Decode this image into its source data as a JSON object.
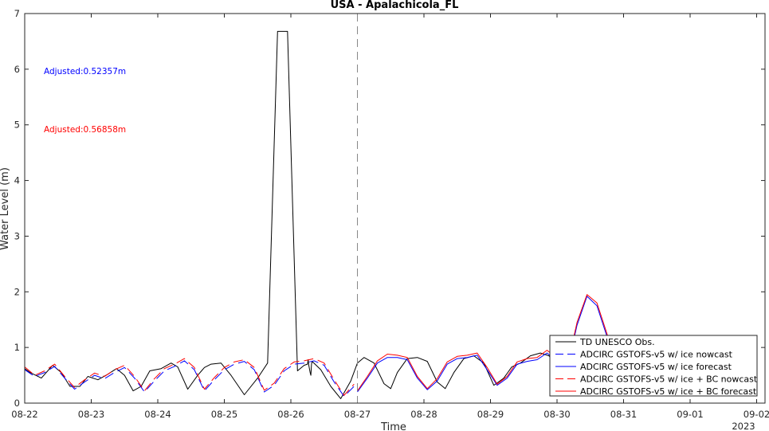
{
  "chart_data": {
    "type": "line",
    "title": "USA - Apalachicola_FL",
    "xlabel": "Time",
    "ylabel": "Water Level (m)",
    "year_label": "2023",
    "xlim": [
      "08-22",
      "09-02"
    ],
    "ylim": [
      0,
      7
    ],
    "grid": false,
    "legend_placement": "bottom-right",
    "x_tick_labels": [
      "08-22",
      "08-23",
      "08-24",
      "08-25",
      "08-26",
      "08-27",
      "08-28",
      "08-29",
      "08-30",
      "08-31",
      "09-01",
      "09-02"
    ],
    "y_tick_labels": [
      "0",
      "1",
      "2",
      "3",
      "4",
      "5",
      "6",
      "7"
    ],
    "annotations": [
      {
        "text": "Adjusted:0.52357m",
        "color": "#0000ff"
      },
      {
        "text": "Adjusted:0.56858m",
        "color": "#ff0000"
      }
    ],
    "nowcast_forecast_divider": "08-27",
    "series": [
      {
        "name": "TD UNESCO Obs.",
        "color": "#000000",
        "dash": "solid",
        "x": [
          0,
          0.08,
          0.25,
          0.42,
          0.55,
          0.68,
          0.83,
          0.95,
          1.1,
          1.25,
          1.38,
          1.5,
          1.63,
          1.75,
          1.88,
          2.05,
          2.2,
          2.3,
          2.45,
          2.6,
          2.7,
          2.8,
          2.95,
          3.1,
          3.3,
          3.5,
          3.65,
          3.8,
          3.95,
          4.1,
          4.2,
          4.25,
          4.26,
          4.27,
          4.29,
          4.3,
          4.31,
          4.32,
          4.45,
          4.6,
          4.75,
          4.9,
          5.0,
          5.1,
          5.25,
          5.4,
          5.5,
          5.6,
          5.75,
          5.9,
          6.05,
          6.2,
          6.32,
          6.45,
          6.6,
          6.75,
          6.9,
          7.05,
          7.2,
          7.32,
          7.45,
          7.6,
          7.75,
          7.88,
          8.0
        ],
        "y": [
          0.62,
          0.55,
          0.45,
          0.68,
          0.55,
          0.3,
          0.3,
          0.48,
          0.42,
          0.52,
          0.62,
          0.5,
          0.22,
          0.3,
          0.58,
          0.62,
          0.72,
          0.65,
          0.25,
          0.5,
          0.64,
          0.7,
          0.72,
          0.5,
          0.15,
          0.45,
          0.72,
          6.68,
          6.68,
          0.58,
          0.68,
          0.7,
          0.78,
          0.68,
          0.55,
          0.5,
          0.7,
          0.75,
          0.6,
          0.3,
          0.08,
          0.4,
          0.72,
          0.82,
          0.72,
          0.35,
          0.26,
          0.55,
          0.8,
          0.82,
          0.75,
          0.38,
          0.26,
          0.55,
          0.8,
          0.85,
          0.72,
          0.32,
          0.45,
          0.65,
          0.72,
          0.85,
          0.9,
          0.85,
          0.62
        ]
      },
      {
        "name": "ADCIRC GSTOFS-v5 w/ ice nowcast",
        "color": "#0000ff",
        "dash": "dashed",
        "x": [
          0,
          0.15,
          0.3,
          0.45,
          0.6,
          0.75,
          0.9,
          1.05,
          1.2,
          1.35,
          1.5,
          1.65,
          1.8,
          1.95,
          2.1,
          2.25,
          2.4,
          2.55,
          2.7,
          2.85,
          3.0,
          3.15,
          3.3,
          3.45,
          3.6,
          3.75,
          3.9,
          4.05,
          4.2,
          4.35,
          4.5,
          4.65,
          4.8,
          4.95
        ],
        "y": [
          0.6,
          0.48,
          0.55,
          0.66,
          0.45,
          0.25,
          0.38,
          0.5,
          0.44,
          0.55,
          0.64,
          0.45,
          0.2,
          0.4,
          0.58,
          0.66,
          0.76,
          0.6,
          0.22,
          0.42,
          0.6,
          0.7,
          0.75,
          0.6,
          0.2,
          0.32,
          0.58,
          0.7,
          0.72,
          0.76,
          0.68,
          0.38,
          0.12,
          0.3
        ]
      },
      {
        "name": "ADCIRC GSTOFS-v5 w/ ice forecast",
        "color": "#0000ff",
        "dash": "solid",
        "x": [
          5.0,
          5.15,
          5.3,
          5.45,
          5.6,
          5.75,
          5.9,
          6.05,
          6.2,
          6.35,
          6.5,
          6.65,
          6.8,
          6.95,
          7.1,
          7.25,
          7.4,
          7.55,
          7.7,
          7.85,
          8.0,
          8.15,
          8.3,
          8.45,
          8.6,
          8.75,
          8.9,
          9.0
        ],
        "y": [
          0.2,
          0.45,
          0.72,
          0.82,
          0.82,
          0.78,
          0.45,
          0.24,
          0.4,
          0.7,
          0.8,
          0.82,
          0.86,
          0.6,
          0.32,
          0.45,
          0.7,
          0.75,
          0.78,
          0.9,
          0.75,
          0.6,
          1.4,
          1.92,
          1.75,
          1.2,
          0.6,
          0.4
        ]
      },
      {
        "name": "ADCIRC GSTOFS-v5 w/ ice + BC nowcast",
        "color": "#ff0000",
        "dash": "dashed",
        "x": [
          0,
          0.15,
          0.3,
          0.45,
          0.6,
          0.75,
          0.9,
          1.05,
          1.2,
          1.35,
          1.5,
          1.65,
          1.8,
          1.95,
          2.1,
          2.25,
          2.4,
          2.55,
          2.7,
          2.85,
          3.0,
          3.15,
          3.3,
          3.45,
          3.6,
          3.75,
          3.9,
          4.05,
          4.2,
          4.35,
          4.5,
          4.65,
          4.8,
          4.95
        ],
        "y": [
          0.65,
          0.5,
          0.58,
          0.7,
          0.48,
          0.28,
          0.42,
          0.54,
          0.48,
          0.6,
          0.68,
          0.48,
          0.22,
          0.44,
          0.62,
          0.7,
          0.8,
          0.64,
          0.25,
          0.46,
          0.64,
          0.74,
          0.78,
          0.64,
          0.23,
          0.36,
          0.62,
          0.74,
          0.76,
          0.8,
          0.72,
          0.42,
          0.14,
          0.34
        ]
      },
      {
        "name": "ADCIRC GSTOFS-v5 w/ ice + BC forecast",
        "color": "#ff0000",
        "dash": "solid",
        "x": [
          5.0,
          5.15,
          5.3,
          5.45,
          5.6,
          5.75,
          5.9,
          6.05,
          6.2,
          6.35,
          6.5,
          6.65,
          6.8,
          6.95,
          7.1,
          7.25,
          7.4,
          7.55,
          7.7,
          7.85,
          8.0,
          8.15,
          8.3,
          8.45,
          8.6,
          8.75,
          8.9,
          9.0
        ],
        "y": [
          0.22,
          0.48,
          0.76,
          0.88,
          0.86,
          0.82,
          0.48,
          0.26,
          0.44,
          0.74,
          0.84,
          0.86,
          0.9,
          0.64,
          0.34,
          0.48,
          0.74,
          0.8,
          0.82,
          0.95,
          0.8,
          0.64,
          1.45,
          1.95,
          1.8,
          1.25,
          0.64,
          0.44
        ]
      }
    ]
  }
}
